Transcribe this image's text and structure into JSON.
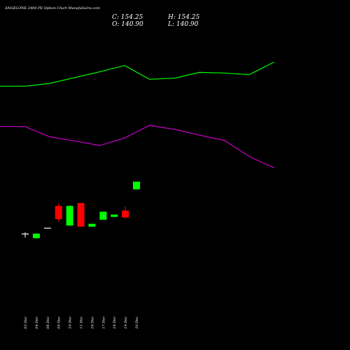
{
  "chart_data": {
    "type": "candlestick",
    "title": "ANGELONE 2400  PE Option  Chart MunafaSutra.com",
    "ohlc_labels": {
      "close": "C: 154.25",
      "open": "O: 140.90",
      "high": "H: 154.25",
      "low": "L: 140.90"
    },
    "categories": [
      "03 Dec",
      "04 Dec",
      "06 Dec",
      "09 Dec",
      "10 Dec",
      "11 Dec",
      "16 Dec",
      "17 Dec",
      "18 Dec",
      "19 Dec",
      "20 Dec"
    ],
    "candles": [
      {
        "open": 64,
        "high": 66,
        "low": 57,
        "close": 64
      },
      {
        "open": 56,
        "high": 64,
        "low": 56,
        "close": 64
      },
      {
        "open": 74,
        "high": 74,
        "low": 74,
        "close": 74
      },
      {
        "open": 112,
        "high": 116,
        "low": 85,
        "close": 89
      },
      {
        "open": 78,
        "high": 113,
        "low": 78,
        "close": 112
      },
      {
        "open": 117,
        "high": 117,
        "low": 76,
        "close": 76
      },
      {
        "open": 76,
        "high": 81,
        "low": 76,
        "close": 81
      },
      {
        "open": 88,
        "high": 102,
        "low": 88,
        "close": 102
      },
      {
        "open": 93,
        "high": 97,
        "low": 93,
        "close": 97
      },
      {
        "open": 104,
        "high": 111,
        "low": 90,
        "close": 92
      },
      {
        "open": 140.9,
        "high": 154.25,
        "low": 140.9,
        "close": 154.25
      }
    ],
    "upper_line": [
      320,
      320,
      325,
      335,
      345,
      356,
      332,
      334,
      344,
      343,
      340,
      362
    ],
    "lower_line": [
      250,
      250,
      232,
      225,
      217,
      230,
      252,
      245,
      235,
      226,
      198,
      178
    ],
    "colors": {
      "up": "#00ff00",
      "down": "#ff0000",
      "upper_line": "#00ff00",
      "lower_line": "#cc00cc",
      "text": "#ffffff",
      "background": "#000000"
    }
  }
}
